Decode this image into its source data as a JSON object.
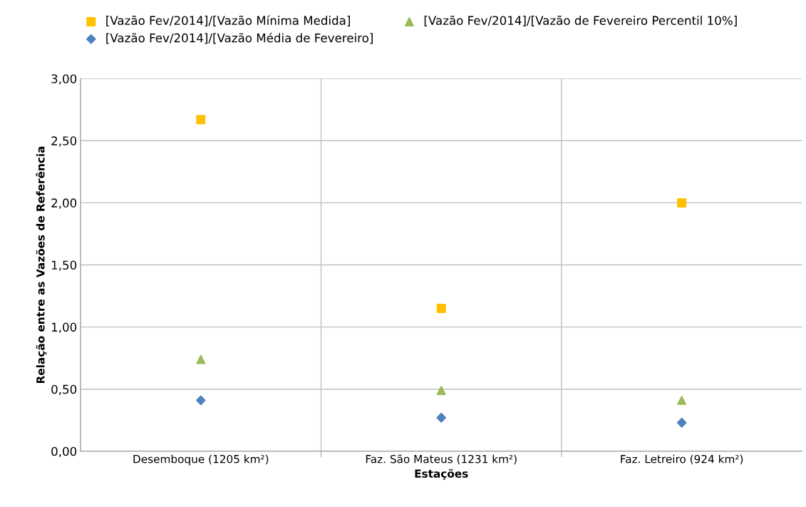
{
  "chart_data": {
    "type": "scatter",
    "xlabel": "Estações",
    "ylabel": "Relação entre as Vazões de Referência",
    "categories": [
      "Desemboque (1205 km²)",
      "Faz. São Mateus (1231 km²)",
      "Faz. Letreiro (924 km²)"
    ],
    "series": [
      {
        "name": "[Vazão Fev/2014]/[Vazão Mínima Medida]",
        "color": "#ffc000",
        "marker": "square",
        "values": [
          2.67,
          1.15,
          2.0
        ]
      },
      {
        "name": "[Vazão Fev/2014]/[Vazão Média de Fevereiro]",
        "color": "#4f81bd",
        "marker": "diamond",
        "values": [
          0.41,
          0.27,
          0.23
        ]
      },
      {
        "name": "[Vazão Fev/2014]/[Vazão de Fevereiro Percentil 10%]",
        "color": "#9bbb59",
        "marker": "triangle",
        "values": [
          0.74,
          0.49,
          0.41
        ]
      }
    ],
    "ylim": [
      0,
      3
    ],
    "yticks": [
      {
        "value": 0,
        "label": "0,00"
      },
      {
        "value": 0.5,
        "label": "0,50"
      },
      {
        "value": 1,
        "label": "1,00"
      },
      {
        "value": 1.5,
        "label": "1,50"
      },
      {
        "value": 2,
        "label": "2,00"
      },
      {
        "value": 2.5,
        "label": "2,50"
      },
      {
        "value": 3,
        "label": "3,00"
      }
    ],
    "grid": true,
    "legend": "top"
  }
}
